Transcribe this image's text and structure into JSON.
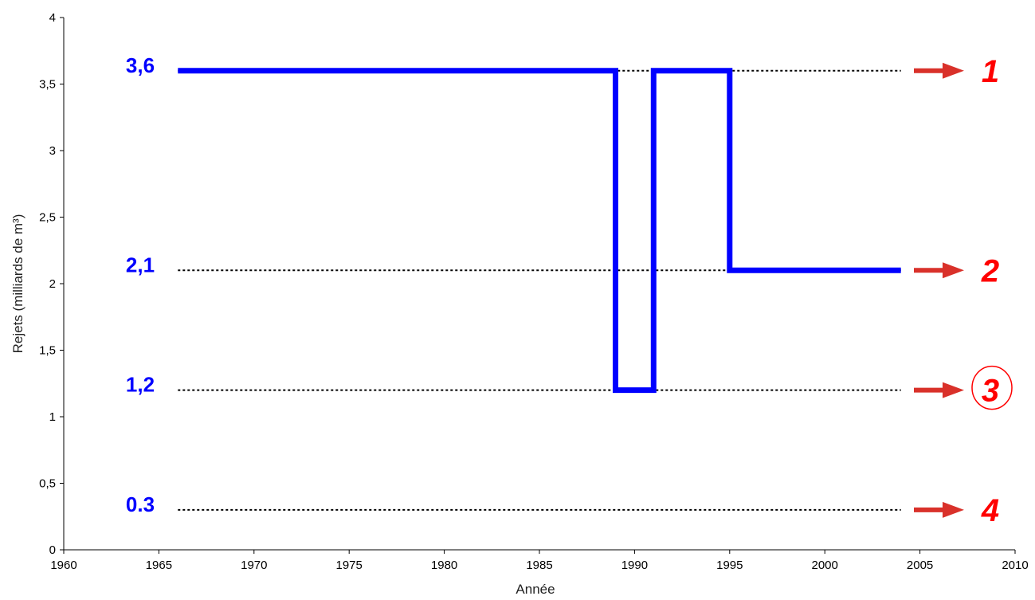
{
  "chart_data": {
    "type": "line",
    "xlabel": "Année",
    "ylabel": "Rejets (milliards de m³)",
    "xlim": [
      1960,
      2010
    ],
    "ylim": [
      0,
      4
    ],
    "x_ticks": [
      "1960",
      "1965",
      "1970",
      "1975",
      "1980",
      "1985",
      "1990",
      "1995",
      "2000",
      "2005",
      "2010"
    ],
    "y_ticks": [
      "0",
      "0,5",
      "1",
      "1,5",
      "2",
      "2,5",
      "3",
      "3,5",
      "4"
    ],
    "grid": false,
    "series": [
      {
        "step": true,
        "x": [
          1966,
          1989,
          1989,
          1991,
          1991,
          1995,
          1995,
          2004
        ],
        "y": [
          3.6,
          3.6,
          1.2,
          1.2,
          3.6,
          3.6,
          2.1,
          2.1
        ]
      }
    ],
    "levels": [
      {
        "value": 3.6,
        "label": "3,6",
        "scenario": "1",
        "circled": false
      },
      {
        "value": 2.1,
        "label": "2,1",
        "scenario": "2",
        "circled": false
      },
      {
        "value": 1.2,
        "label": "1,2",
        "scenario": "3",
        "circled": true
      },
      {
        "value": 0.3,
        "label": "0.3",
        "scenario": "4",
        "circled": false
      }
    ],
    "colors": {
      "series": "#0000ff",
      "level_label": "#0000ff",
      "arrow": "#d9312a",
      "scenario": "#ff0000",
      "reference_line": "#000000"
    }
  }
}
